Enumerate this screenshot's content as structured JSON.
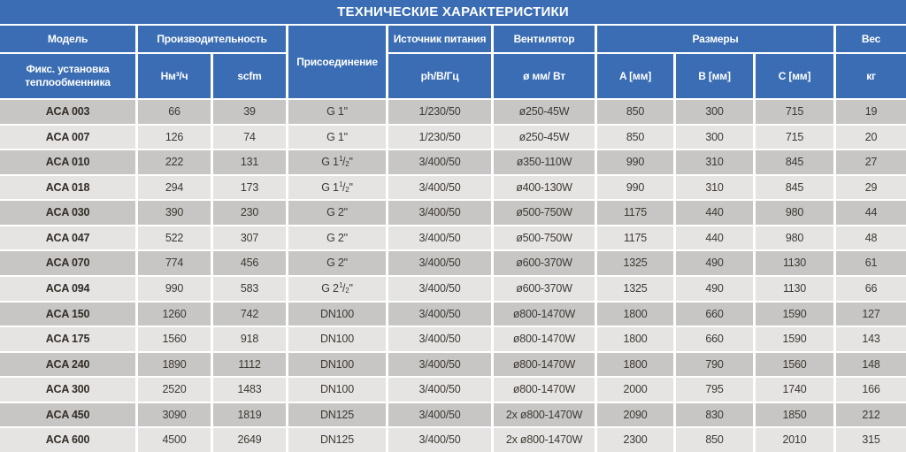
{
  "title": "ТЕХНИЧЕСКИЕ ХАРАКТЕРИСТИКИ",
  "colors": {
    "header_blue": "#3a6db3",
    "row_dark": "#c7c6c4",
    "row_light": "#e5e4e2",
    "text_dark": "#3e3833",
    "header_text": "#ffffff"
  },
  "table": {
    "group_headers": {
      "model": "Модель",
      "capacity": "Производительность",
      "connection": "Присоединение",
      "power_source": "Источник питания",
      "fan": "Вентилятор",
      "dimensions": "Размеры",
      "weight": "Вес"
    },
    "sub_headers": {
      "model_sub": "Фикс. установка теплообменника",
      "nm3h": "Нм³/ч",
      "scfm": "scfm",
      "power": "ph/В/Гц",
      "fan_sub": "ø мм/ Вт",
      "a": "A [мм]",
      "b": "B [мм]",
      "c": "C [мм]",
      "kg": "кг"
    },
    "rows": [
      [
        "ACA 003",
        "66",
        "39",
        "G 1\"",
        "1/230/50",
        "ø250-45W",
        "850",
        "300",
        "715",
        "19"
      ],
      [
        "ACA 007",
        "126",
        "74",
        "G 1\"",
        "1/230/50",
        "ø250-45W",
        "850",
        "300",
        "715",
        "20"
      ],
      [
        "ACA 010",
        "222",
        "131",
        "G 1 1/2\"",
        "3/400/50",
        "ø350-110W",
        "990",
        "310",
        "845",
        "27"
      ],
      [
        "ACA 018",
        "294",
        "173",
        "G 1 1/2\"",
        "3/400/50",
        "ø400-130W",
        "990",
        "310",
        "845",
        "29"
      ],
      [
        "ACA 030",
        "390",
        "230",
        "G 2\"",
        "3/400/50",
        "ø500-750W",
        "1175",
        "440",
        "980",
        "44"
      ],
      [
        "ACA 047",
        "522",
        "307",
        "G 2\"",
        "3/400/50",
        "ø500-750W",
        "1175",
        "440",
        "980",
        "48"
      ],
      [
        "ACA 070",
        "774",
        "456",
        "G 2\"",
        "3/400/50",
        "ø600-370W",
        "1325",
        "490",
        "1130",
        "61"
      ],
      [
        "ACA 094",
        "990",
        "583",
        "G 2 1/2\"",
        "3/400/50",
        "ø600-370W",
        "1325",
        "490",
        "1130",
        "66"
      ],
      [
        "ACA 150",
        "1260",
        "742",
        "DN100",
        "3/400/50",
        "ø800-1470W",
        "1800",
        "660",
        "1590",
        "127"
      ],
      [
        "ACA 175",
        "1560",
        "918",
        "DN100",
        "3/400/50",
        "ø800-1470W",
        "1800",
        "660",
        "1590",
        "143"
      ],
      [
        "ACA 240",
        "1890",
        "1112",
        "DN100",
        "3/400/50",
        "ø800-1470W",
        "1800",
        "790",
        "1560",
        "148"
      ],
      [
        "ACA 300",
        "2520",
        "1483",
        "DN100",
        "3/400/50",
        "ø800-1470W",
        "2000",
        "795",
        "1740",
        "166"
      ],
      [
        "ACA 450",
        "3090",
        "1819",
        "DN125",
        "3/400/50",
        "2x ø800-1470W",
        "2090",
        "830",
        "1850",
        "212"
      ],
      [
        "ACA 600",
        "4500",
        "2649",
        "DN125",
        "3/400/50",
        "2x ø800-1470W",
        "2300",
        "850",
        "2010",
        "315"
      ]
    ]
  }
}
